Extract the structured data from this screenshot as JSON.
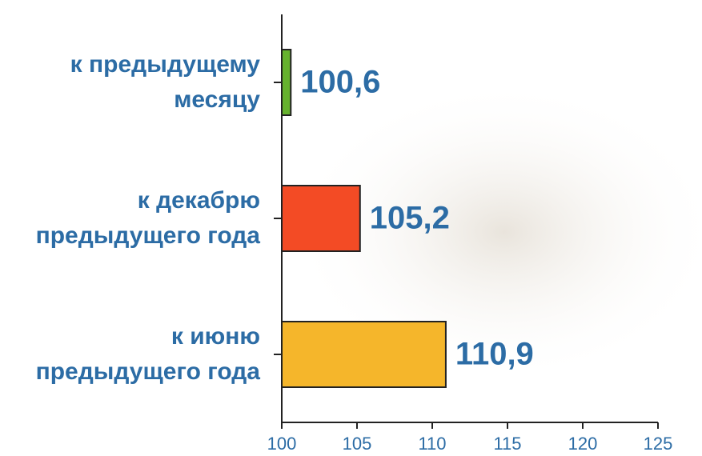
{
  "chart_data": {
    "type": "bar",
    "orientation": "horizontal",
    "categories": [
      "к предыдущему\nмесяцу",
      "к декабрю\nпредыдущего года",
      "к июню\nпредыдущего года"
    ],
    "values": [
      100.6,
      105.2,
      110.9
    ],
    "value_labels": [
      "100,6",
      "105,2",
      "110,9"
    ],
    "colors": [
      "#66b22e",
      "#f34b25",
      "#f5b62b"
    ],
    "xlim": [
      100,
      125
    ],
    "xticks": [
      100,
      105,
      110,
      115,
      120,
      125
    ],
    "grid": false
  }
}
